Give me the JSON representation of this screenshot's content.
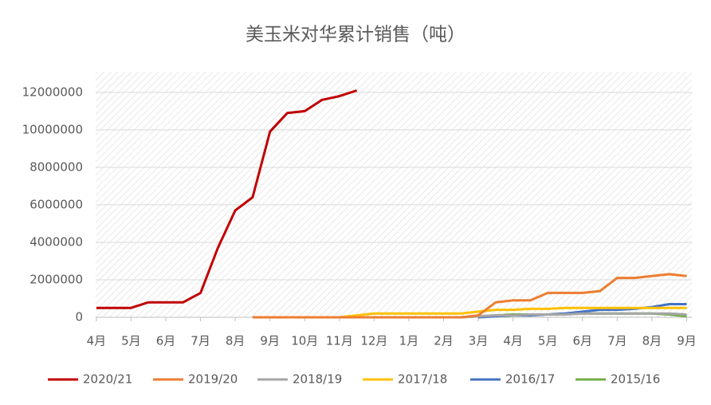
{
  "chart_data": {
    "type": "line",
    "title": "美玉米对华累计销售（吨）",
    "x": [
      0,
      0.5,
      1,
      1.5,
      2,
      2.5,
      3,
      3.5,
      4,
      4.5,
      5,
      5.5,
      6,
      6.5,
      7,
      7.5,
      8,
      8.5,
      9,
      9.5,
      10,
      10.5,
      11,
      11.5,
      12,
      12.5,
      13,
      13.5,
      14,
      14.5,
      15,
      15.5,
      16,
      16.5,
      17
    ],
    "xlim": [
      -0.02,
      17.15
    ],
    "xticks": [
      {
        "value": 0,
        "label": "4月"
      },
      {
        "value": 1,
        "label": "5月"
      },
      {
        "value": 2,
        "label": "6月"
      },
      {
        "value": 3,
        "label": "7月"
      },
      {
        "value": 4,
        "label": "8月"
      },
      {
        "value": 5,
        "label": "9月"
      },
      {
        "value": 6,
        "label": "10月"
      },
      {
        "value": 7,
        "label": "11月"
      },
      {
        "value": 8,
        "label": "12月"
      },
      {
        "value": 9,
        "label": "1月"
      },
      {
        "value": 10,
        "label": "2月"
      },
      {
        "value": 11,
        "label": "3月"
      },
      {
        "value": 12,
        "label": "4月"
      },
      {
        "value": 13,
        "label": "5月"
      },
      {
        "value": 14,
        "label": "6月"
      },
      {
        "value": 15,
        "label": "7月"
      },
      {
        "value": 16,
        "label": "8月"
      },
      {
        "value": 17,
        "label": "9月"
      }
    ],
    "ylim": [
      0,
      13100000
    ],
    "yticks": [
      0,
      2000000,
      4000000,
      6000000,
      8000000,
      10000000,
      12000000
    ],
    "grid": true,
    "legend": "bottom",
    "series": [
      {
        "name": "2020/21",
        "color": "#c00000",
        "values": [
          500000,
          500000,
          500000,
          800000,
          800000,
          800000,
          1300000,
          3700000,
          5700000,
          6400000,
          9900000,
          10900000,
          11000000,
          11600000,
          11800000,
          12100000,
          null,
          null,
          null,
          null,
          null,
          null,
          null,
          null,
          null,
          null,
          null,
          null,
          null,
          null,
          null,
          null,
          null,
          null,
          null
        ]
      },
      {
        "name": "2019/20",
        "color": "#ed7d31",
        "values": [
          null,
          null,
          null,
          null,
          null,
          null,
          null,
          null,
          null,
          0,
          0,
          0,
          0,
          0,
          0,
          0,
          0,
          0,
          0,
          0,
          0,
          0,
          100000,
          800000,
          900000,
          900000,
          1300000,
          1300000,
          1300000,
          1400000,
          2100000,
          2100000,
          2200000,
          2300000,
          2200000
        ]
      },
      {
        "name": "2018/19",
        "color": "#a5a5a5",
        "values": [
          null,
          null,
          null,
          null,
          null,
          null,
          null,
          null,
          null,
          null,
          0,
          0,
          0,
          0,
          0,
          0,
          0,
          0,
          0,
          0,
          0,
          0,
          50000,
          100000,
          100000,
          150000,
          150000,
          150000,
          200000,
          200000,
          200000,
          200000,
          200000,
          200000,
          150000
        ]
      },
      {
        "name": "2017/18",
        "color": "#ffc000",
        "values": [
          null,
          null,
          null,
          null,
          null,
          null,
          null,
          null,
          null,
          null,
          0,
          0,
          0,
          0,
          0,
          100000,
          200000,
          200000,
          200000,
          200000,
          200000,
          200000,
          300000,
          400000,
          400000,
          450000,
          450000,
          500000,
          500000,
          500000,
          500000,
          500000,
          500000,
          500000,
          500000
        ]
      },
      {
        "name": "2016/17",
        "color": "#4472c4",
        "values": [
          null,
          null,
          null,
          null,
          null,
          null,
          null,
          null,
          null,
          null,
          null,
          null,
          null,
          null,
          null,
          null,
          null,
          null,
          null,
          null,
          null,
          null,
          0,
          50000,
          100000,
          100000,
          150000,
          200000,
          300000,
          400000,
          400000,
          450000,
          550000,
          700000,
          700000
        ]
      },
      {
        "name": "2015/16",
        "color": "#70ad47",
        "values": [
          null,
          null,
          null,
          null,
          null,
          null,
          null,
          null,
          null,
          null,
          0,
          0,
          0,
          0,
          0,
          0,
          0,
          0,
          0,
          0,
          0,
          0,
          50000,
          100000,
          150000,
          150000,
          150000,
          200000,
          200000,
          200000,
          200000,
          200000,
          200000,
          150000,
          50000
        ]
      }
    ]
  }
}
